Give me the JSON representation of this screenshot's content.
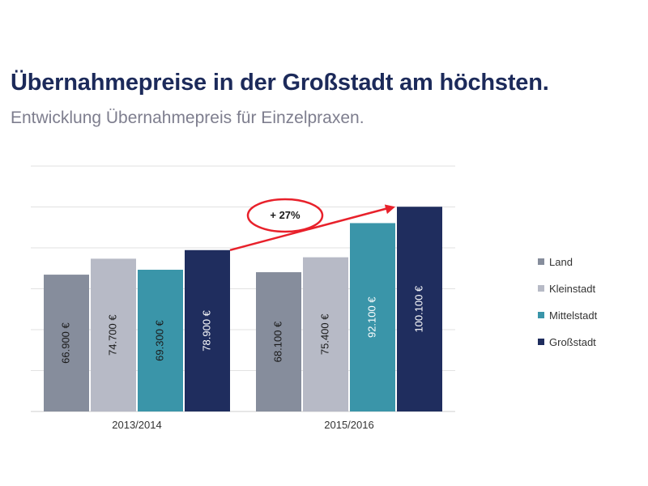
{
  "header": {
    "title": "Übernahmepreise in der Großstadt am höchsten.",
    "subtitle": "Entwicklung Übernahmepreis für Einzelpraxen."
  },
  "chart_data": {
    "type": "bar",
    "categories": [
      "2013/2014",
      "2015/2016"
    ],
    "series": [
      {
        "name": "Land",
        "color": "#868d9c",
        "values": [
          66900,
          68100
        ],
        "labels": [
          "66.900 €",
          "68.100 €"
        ]
      },
      {
        "name": "Kleinstadt",
        "color": "#b7bac6",
        "values": [
          74700,
          75400
        ],
        "labels": [
          "74.700 €",
          "75.400 €"
        ]
      },
      {
        "name": "Mittelstadt",
        "color": "#3a95a9",
        "values": [
          69300,
          92100
        ],
        "labels": [
          "69.300 €",
          "92.100 €"
        ]
      },
      {
        "name": "Großstadt",
        "color": "#1f2d5e",
        "values": [
          78900,
          100100
        ],
        "labels": [
          "78.900 €",
          "100.100 €"
        ]
      }
    ],
    "ylim": [
      0,
      120000
    ],
    "grid": true,
    "legend_position": "right",
    "annotation": {
      "text": "+ 27%",
      "color": "#e8212b",
      "from_series": "Großstadt"
    }
  }
}
